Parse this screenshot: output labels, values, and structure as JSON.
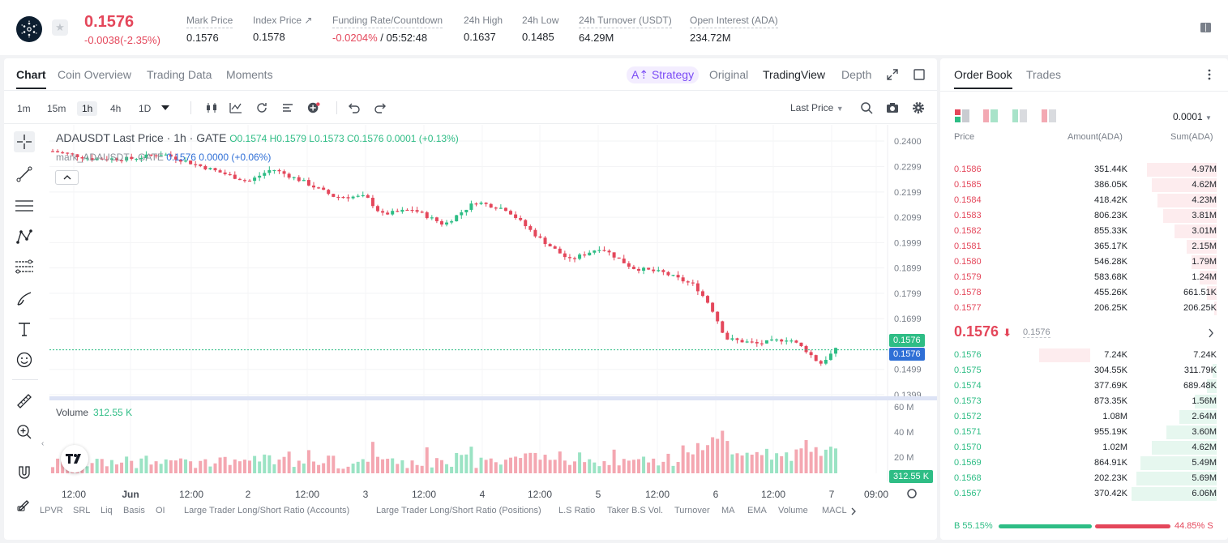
{
  "header": {
    "last_price": "0.1576",
    "change": "-0.0038(-2.35%)",
    "stats": [
      {
        "label": "Mark Price",
        "value": "0.1576"
      },
      {
        "label": "Index Price ↗",
        "value": "0.1578"
      },
      {
        "label": "Funding Rate/Countdown",
        "value_neg": "-0.0204%",
        "value": " / 05:52:48"
      },
      {
        "label": "24h High",
        "value": "0.1637"
      },
      {
        "label": "24h Low",
        "value": "0.1485"
      },
      {
        "label": "24h Turnover (USDT)",
        "value": "64.29M"
      },
      {
        "label": "Open Interest (ADA)",
        "value": "234.72M"
      }
    ]
  },
  "chart_panel": {
    "tabs": [
      "Chart",
      "Coin Overview",
      "Trading Data",
      "Moments"
    ],
    "strategy": "A⇡ Strategy",
    "views": [
      "Original",
      "TradingView",
      "Depth"
    ],
    "intervals": [
      "1m",
      "15m",
      "1h",
      "4h",
      "1D"
    ],
    "price_type": "Last Price",
    "legend": {
      "title": "ADAUSDT Last Price · 1h · GATE",
      "ohlc": "O0.1574 H0.1579 L0.1573 C0.1576 0.0001 (+0.13%)",
      "mark_name": "mark_ADAUSDT · GATE ",
      "mark_vals": "0.1576  0.0000 (+0.06%)"
    },
    "volume_label": "Volume",
    "volume_value": "312.55 K",
    "price_tag_top": "0.1576",
    "price_tag_mark": "0.1576",
    "volume_tag": "312.55 K",
    "indicators": [
      "LPVR",
      "SRL",
      "Liq",
      "Basis",
      "OI",
      "Large Trader Long/Short Ratio (Accounts)",
      "Large Trader Long/Short Ratio (Positions)",
      "L.S Ratio",
      "Taker B.S Vol.",
      "Turnover",
      "MA",
      "EMA",
      "Volume",
      "MACL"
    ]
  },
  "chart_data": {
    "type": "candlestick",
    "title": "ADAUSDT Last Price · 1h · GATE",
    "y_ticks": [
      "0.2400",
      "0.2299",
      "0.2199",
      "0.2099",
      "0.1999",
      "0.1899",
      "0.1799",
      "0.1699",
      "0.1499",
      "0.1399"
    ],
    "ylim": [
      0.1399,
      0.24
    ],
    "x_ticks": [
      "12:00",
      "Jun",
      "12:00",
      "2",
      "12:00",
      "3",
      "12:00",
      "4",
      "12:00",
      "5",
      "12:00",
      "6",
      "12:00",
      "7",
      "09:00"
    ],
    "volume_ticks": [
      "60 M",
      "40 M",
      "20 M"
    ],
    "volume_ylim": [
      0,
      60
    ],
    "price_path": [
      {
        "t": 0,
        "v": 0.236
      },
      {
        "t": 0.05,
        "v": 0.233
      },
      {
        "t": 0.1,
        "v": 0.233
      },
      {
        "t": 0.14,
        "v": 0.235
      },
      {
        "t": 0.2,
        "v": 0.229
      },
      {
        "t": 0.25,
        "v": 0.224
      },
      {
        "t": 0.28,
        "v": 0.229
      },
      {
        "t": 0.32,
        "v": 0.224
      },
      {
        "t": 0.36,
        "v": 0.218
      },
      {
        "t": 0.4,
        "v": 0.218
      },
      {
        "t": 0.42,
        "v": 0.211
      },
      {
        "t": 0.46,
        "v": 0.213
      },
      {
        "t": 0.5,
        "v": 0.207
      },
      {
        "t": 0.54,
        "v": 0.216
      },
      {
        "t": 0.58,
        "v": 0.213
      },
      {
        "t": 0.62,
        "v": 0.202
      },
      {
        "t": 0.66,
        "v": 0.193
      },
      {
        "t": 0.7,
        "v": 0.198
      },
      {
        "t": 0.74,
        "v": 0.19
      },
      {
        "t": 0.78,
        "v": 0.188
      },
      {
        "t": 0.82,
        "v": 0.183
      },
      {
        "t": 0.84,
        "v": 0.175
      },
      {
        "t": 0.86,
        "v": 0.162
      },
      {
        "t": 0.9,
        "v": 0.16
      },
      {
        "t": 0.94,
        "v": 0.162
      },
      {
        "t": 0.96,
        "v": 0.158
      },
      {
        "t": 0.98,
        "v": 0.152
      },
      {
        "t": 1.0,
        "v": 0.1576
      }
    ]
  },
  "order_book": {
    "tabs": [
      "Order Book",
      "Trades"
    ],
    "precision": "0.0001",
    "headers": {
      "price": "Price",
      "amount": "Amount(ADA)",
      "sum": "Sum(ADA)"
    },
    "asks": [
      {
        "price": "0.1586",
        "amount": "351.44K",
        "sum": "4.97M",
        "depth": 0.82
      },
      {
        "price": "0.1585",
        "amount": "386.05K",
        "sum": "4.62M",
        "depth": 0.76
      },
      {
        "price": "0.1584",
        "amount": "418.42K",
        "sum": "4.23M",
        "depth": 0.7
      },
      {
        "price": "0.1583",
        "amount": "806.23K",
        "sum": "3.81M",
        "depth": 0.63
      },
      {
        "price": "0.1582",
        "amount": "855.33K",
        "sum": "3.01M",
        "depth": 0.5
      },
      {
        "price": "0.1581",
        "amount": "365.17K",
        "sum": "2.15M",
        "depth": 0.35
      },
      {
        "price": "0.1580",
        "amount": "546.28K",
        "sum": "1.79M",
        "depth": 0.3
      },
      {
        "price": "0.1579",
        "amount": "583.68K",
        "sum": "1.24M",
        "depth": 0.2
      },
      {
        "price": "0.1578",
        "amount": "455.26K",
        "sum": "661.51K",
        "depth": 0.11
      },
      {
        "price": "0.1577",
        "amount": "206.25K",
        "sum": "206.25K",
        "depth": 0.03
      }
    ],
    "mid_price": "0.1576",
    "mid_arrow": "⬇",
    "mid_mark": "0.1576",
    "bids": [
      {
        "price": "0.1576",
        "amount": "7.24K",
        "sum": "7.24K",
        "depth": 0.0,
        "amount_depth": 0.6
      },
      {
        "price": "0.1575",
        "amount": "304.55K",
        "sum": "311.79K",
        "depth": 0.05
      },
      {
        "price": "0.1574",
        "amount": "377.69K",
        "sum": "689.48K",
        "depth": 0.11
      },
      {
        "price": "0.1573",
        "amount": "873.35K",
        "sum": "1.56M",
        "depth": 0.26
      },
      {
        "price": "0.1572",
        "amount": "1.08M",
        "sum": "2.64M",
        "depth": 0.44
      },
      {
        "price": "0.1571",
        "amount": "955.19K",
        "sum": "3.60M",
        "depth": 0.59
      },
      {
        "price": "0.1570",
        "amount": "1.02M",
        "sum": "4.62M",
        "depth": 0.76
      },
      {
        "price": "0.1569",
        "amount": "864.91K",
        "sum": "5.49M",
        "depth": 0.9
      },
      {
        "price": "0.1568",
        "amount": "202.23K",
        "sum": "5.69M",
        "depth": 0.94
      },
      {
        "price": "0.1567",
        "amount": "370.42K",
        "sum": "6.06M",
        "depth": 1.0
      }
    ],
    "buy_ratio": "B 55.15%",
    "sell_ratio": "44.85% S",
    "buy_fraction": 0.5515
  },
  "colors": {
    "up": "#2ebd85",
    "down": "#e4475b",
    "accent": "#7b4cf5"
  }
}
